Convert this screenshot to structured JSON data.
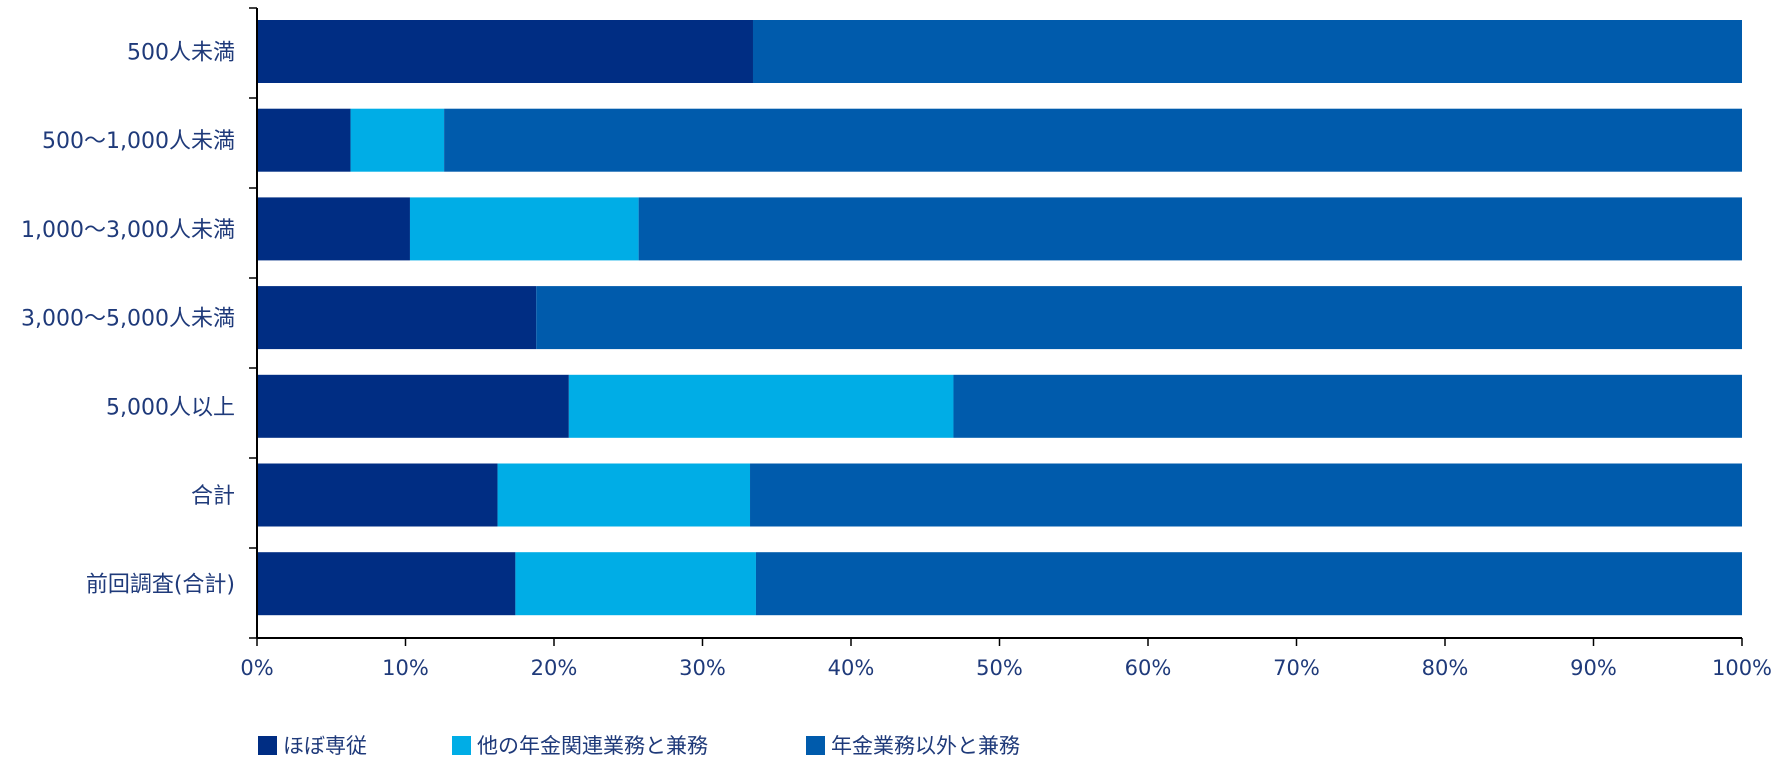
{
  "chart_data": {
    "type": "bar",
    "orientation": "horizontal",
    "stacked": "percent",
    "categories": [
      "500人未満",
      "500〜1,000人未満",
      "1,000〜3,000人未満",
      "3,000〜5,000人未満",
      "5,000人以上",
      "合計",
      "前回調査(合計)"
    ],
    "series": [
      {
        "name": "ほぼ専従",
        "color": "#002d83",
        "values": [
          33.4,
          6.3,
          10.3,
          18.8,
          21.0,
          16.2,
          17.4
        ]
      },
      {
        "name": "他の年金関連業務と兼務",
        "color": "#00ade6",
        "values": [
          0,
          6.3,
          15.4,
          0,
          25.9,
          17.0,
          16.2
        ]
      },
      {
        "name": "年金業務以外と兼務",
        "color": "#005bac",
        "values": [
          66.6,
          87.4,
          74.3,
          81.2,
          53.1,
          66.8,
          66.4
        ]
      }
    ],
    "xlim": [
      0,
      100
    ],
    "x_ticks": [
      "0%",
      "10%",
      "20%",
      "30%",
      "40%",
      "50%",
      "60%",
      "70%",
      "80%",
      "90%",
      "100%"
    ],
    "grid": false,
    "legend_position": "bottom-left"
  },
  "colors": {
    "axis": "#000000",
    "label": "#1f3a7a"
  }
}
